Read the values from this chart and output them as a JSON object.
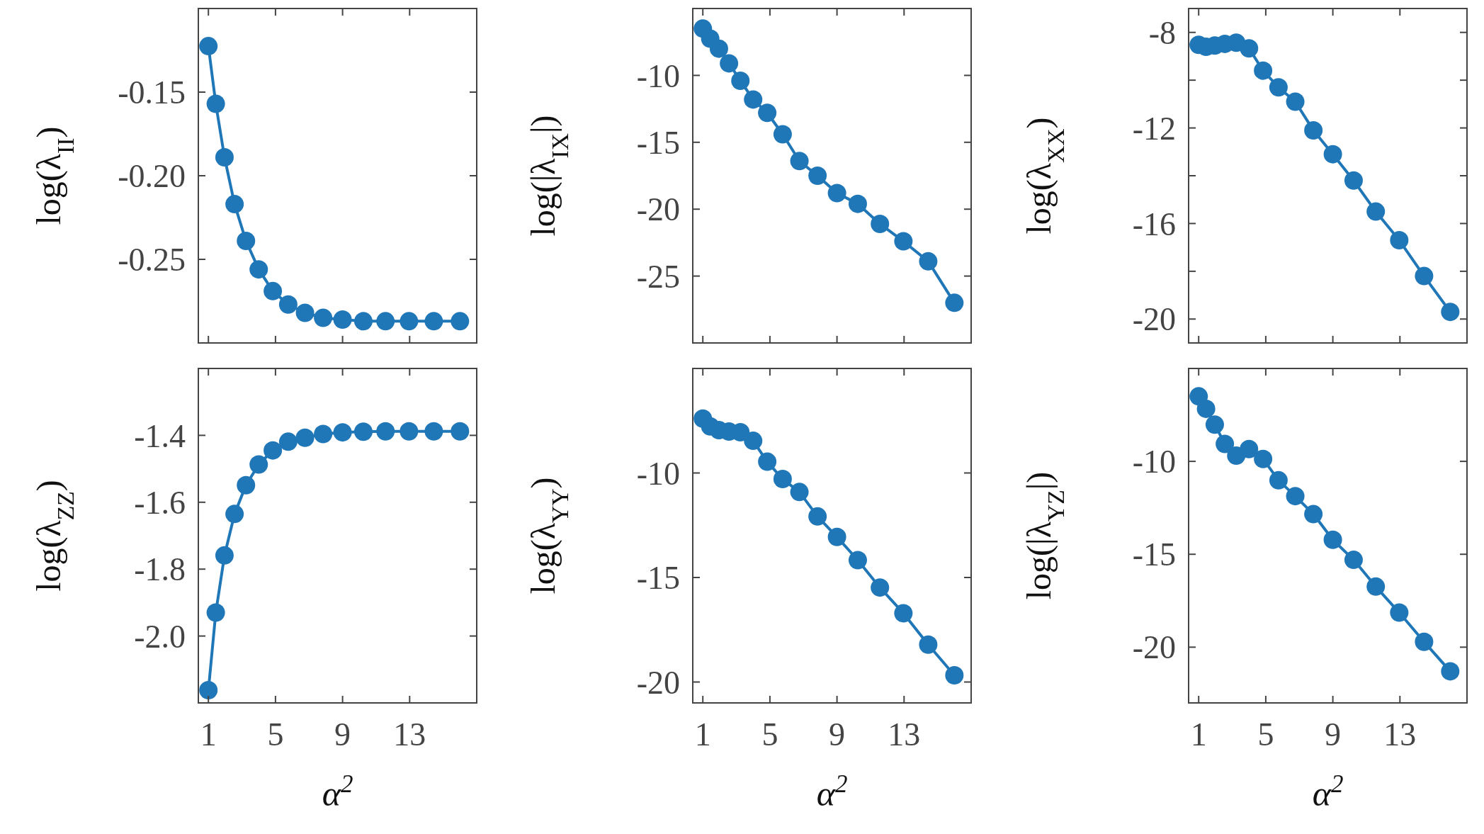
{
  "chart_data": [
    {
      "type": "line",
      "ylabel": "log(λ$_{II}$)",
      "x": [
        1,
        1.44,
        1.96,
        2.56,
        3.24,
        4,
        4.84,
        5.76,
        6.76,
        7.84,
        9,
        10.24,
        11.56,
        12.96,
        14.44,
        16
      ],
      "xlim": [
        0.4,
        17
      ],
      "xticks": [
        1,
        5,
        9,
        13
      ],
      "ylim": [
        -0.3,
        -0.1
      ],
      "yticks": [
        {
          "value": -0.25,
          "label": "-0.25"
        },
        {
          "value": -0.2,
          "label": "-0.20"
        },
        {
          "value": -0.15,
          "label": "-0.15"
        }
      ],
      "tick_labels": "y",
      "marker": "circle",
      "series": [
        {
          "color": "#2077b8",
          "values": [
            -0.1225,
            -0.157,
            -0.189,
            -0.217,
            -0.239,
            -0.256,
            -0.269,
            -0.277,
            -0.282,
            -0.285,
            -0.286,
            -0.287,
            -0.287,
            -0.287,
            -0.287,
            -0.287
          ]
        }
      ]
    },
    {
      "type": "line",
      "ylabel": "log(|λ$_{IX}$|)",
      "x": [
        1,
        1.44,
        1.96,
        2.56,
        3.24,
        4,
        4.84,
        5.76,
        6.76,
        7.84,
        9,
        10.24,
        11.56,
        12.96,
        14.44,
        16
      ],
      "xlim": [
        0.4,
        17
      ],
      "xticks": [
        1,
        5,
        9,
        13
      ],
      "ylim": [
        -30,
        -5
      ],
      "yticks": [
        -25,
        -20,
        -15,
        -10
      ],
      "tick_labels": "y",
      "marker": "circle",
      "series": [
        {
          "color": "#2077b8",
          "values": [
            -6.5,
            -7.25,
            -8.0,
            -9.1,
            -10.4,
            -11.8,
            -12.8,
            -14.4,
            -16.4,
            -17.5,
            -18.8,
            -19.6,
            -21.1,
            -22.4,
            -23.9,
            -27.0
          ]
        }
      ]
    },
    {
      "type": "line",
      "ylabel": "log(λ$_{XX}$)",
      "x": [
        1,
        1.44,
        1.96,
        2.56,
        3.24,
        4,
        4.84,
        5.76,
        6.76,
        7.84,
        9,
        10.24,
        11.56,
        12.96,
        14.44,
        16
      ],
      "xlim": [
        0.4,
        17
      ],
      "xticks": [
        1,
        5,
        9,
        13
      ],
      "ylim": [
        -21,
        -7
      ],
      "yticks": [
        {
          "value": -20,
          "label": "-20"
        },
        {
          "value": -18,
          "label": null
        },
        {
          "value": -16,
          "label": "-16"
        },
        {
          "value": -14,
          "label": null
        },
        {
          "value": -12,
          "label": "-12"
        },
        {
          "value": -10,
          "label": null
        },
        {
          "value": -8,
          "label": "-8"
        }
      ],
      "tick_labels": "y",
      "marker": "circle",
      "series": [
        {
          "color": "#2077b8",
          "values": [
            -8.52,
            -8.6,
            -8.55,
            -8.48,
            -8.43,
            -8.67,
            -9.6,
            -10.3,
            -10.9,
            -12.1,
            -13.1,
            -14.2,
            -15.5,
            -16.7,
            -18.2,
            -19.7
          ]
        }
      ]
    },
    {
      "type": "line",
      "ylabel": "log(λ$_{ZZ}$)",
      "xlabel": "α$^{2}$",
      "x": [
        1,
        1.44,
        1.96,
        2.56,
        3.24,
        4,
        4.84,
        5.76,
        6.76,
        7.84,
        9,
        10.24,
        11.56,
        12.96,
        14.44,
        16
      ],
      "xlim": [
        0.4,
        17
      ],
      "xticks": [
        1,
        5,
        9,
        13
      ],
      "ylim": [
        -2.2,
        -1.2
      ],
      "yticks": [
        {
          "value": -2,
          "label": "-2.0"
        },
        -1.8,
        -1.6,
        -1.4
      ],
      "marker": "circle",
      "series": [
        {
          "color": "#2077b8",
          "values": [
            -2.162,
            -1.93,
            -1.759,
            -1.635,
            -1.549,
            -1.487,
            -1.445,
            -1.419,
            -1.407,
            -1.396,
            -1.391,
            -1.389,
            -1.388,
            -1.388,
            -1.388,
            -1.388
          ]
        }
      ]
    },
    {
      "type": "line",
      "ylabel": "log(λ$_{YY}$)",
      "xlabel": "α$^{2}$",
      "x": [
        1,
        1.44,
        1.96,
        2.56,
        3.24,
        4,
        4.84,
        5.76,
        6.76,
        7.84,
        9,
        10.24,
        11.56,
        12.96,
        14.44,
        16
      ],
      "xlim": [
        0.4,
        17
      ],
      "xticks": [
        1,
        5,
        9,
        13
      ],
      "ylim": [
        -21,
        -5
      ],
      "yticks": [
        -20,
        -15,
        -10
      ],
      "marker": "circle",
      "series": [
        {
          "color": "#2077b8",
          "values": [
            -7.4,
            -7.77,
            -7.95,
            -8.02,
            -8.05,
            -8.46,
            -9.46,
            -10.29,
            -10.91,
            -12.08,
            -13.06,
            -14.17,
            -15.48,
            -16.71,
            -18.21,
            -19.68
          ]
        }
      ]
    },
    {
      "type": "line",
      "ylabel": "log(|λ$_{YZ}$|)",
      "xlabel": "α$^{2}$",
      "x": [
        1,
        1.44,
        1.96,
        2.56,
        3.24,
        4,
        4.84,
        5.76,
        6.76,
        7.84,
        9,
        10.24,
        11.56,
        12.96,
        14.44,
        16
      ],
      "xlim": [
        0.4,
        17
      ],
      "xticks": [
        1,
        5,
        9,
        13
      ],
      "ylim": [
        -23,
        -5
      ],
      "yticks": [
        -20,
        -15,
        -10
      ],
      "marker": "circle",
      "series": [
        {
          "color": "#2077b8",
          "values": [
            -6.5,
            -7.17,
            -8.02,
            -9.06,
            -9.69,
            -9.34,
            -9.87,
            -11.02,
            -11.87,
            -12.84,
            -14.22,
            -15.3,
            -16.74,
            -18.14,
            -19.71,
            -21.3
          ]
        }
      ]
    }
  ]
}
